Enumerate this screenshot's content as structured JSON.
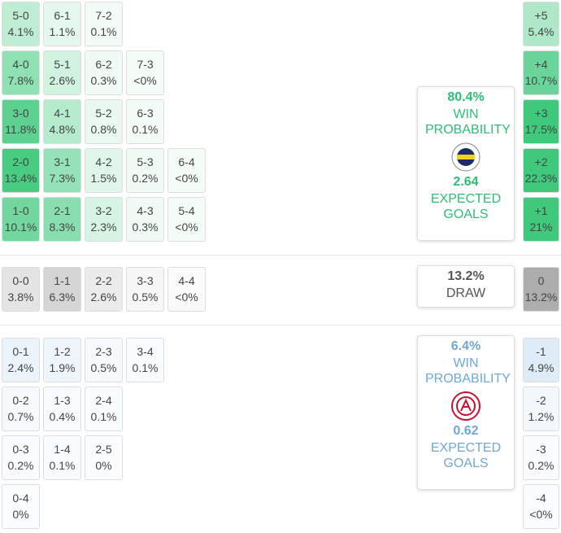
{
  "home": {
    "color": "#2ebd73",
    "base": "#3ec97c",
    "rows": [
      [
        {
          "score": "5-0",
          "prob": "4.1%"
        },
        {
          "score": "6-1",
          "prob": "1.1%"
        },
        {
          "score": "7-2",
          "prob": "0.1%"
        }
      ],
      [
        {
          "score": "4-0",
          "prob": "7.8%"
        },
        {
          "score": "5-1",
          "prob": "2.6%"
        },
        {
          "score": "6-2",
          "prob": "0.3%"
        },
        {
          "score": "7-3",
          "prob": "<0%"
        }
      ],
      [
        {
          "score": "3-0",
          "prob": "11.8%"
        },
        {
          "score": "4-1",
          "prob": "4.8%"
        },
        {
          "score": "5-2",
          "prob": "0.8%"
        },
        {
          "score": "6-3",
          "prob": "0.1%"
        }
      ],
      [
        {
          "score": "2-0",
          "prob": "13.4%"
        },
        {
          "score": "3-1",
          "prob": "7.3%"
        },
        {
          "score": "4-2",
          "prob": "1.5%"
        },
        {
          "score": "5-3",
          "prob": "0.2%"
        },
        {
          "score": "6-4",
          "prob": "<0%"
        }
      ],
      [
        {
          "score": "1-0",
          "prob": "10.1%"
        },
        {
          "score": "2-1",
          "prob": "8.3%"
        },
        {
          "score": "3-2",
          "prob": "2.3%"
        },
        {
          "score": "4-3",
          "prob": "0.3%"
        },
        {
          "score": "5-4",
          "prob": "<0%"
        }
      ]
    ],
    "margins": [
      {
        "label": "+5",
        "prob": "5.4%"
      },
      {
        "label": "+4",
        "prob": "10.7%"
      },
      {
        "label": "+3",
        "prob": "17.5%"
      },
      {
        "label": "+2",
        "prob": "22.3%"
      },
      {
        "label": "+1",
        "prob": "21%"
      }
    ],
    "card": {
      "win_pct": "80.4%",
      "win_label": "WIN PROBABILITY",
      "xg": "2.64",
      "xg_label": "EXPECTED GOALS"
    }
  },
  "draw": {
    "color": "#555555",
    "base": "#a8a8a8",
    "rows": [
      [
        {
          "score": "0-0",
          "prob": "3.8%"
        },
        {
          "score": "1-1",
          "prob": "6.3%"
        },
        {
          "score": "2-2",
          "prob": "2.6%"
        },
        {
          "score": "3-3",
          "prob": "0.5%"
        },
        {
          "score": "4-4",
          "prob": "<0%"
        }
      ]
    ],
    "margins": [
      {
        "label": "0",
        "prob": "13.2%"
      }
    ],
    "card": {
      "pct": "13.2%",
      "label": "DRAW"
    }
  },
  "away": {
    "color": "#6fa8d6",
    "base": "#a9cdeb",
    "rows": [
      [
        {
          "score": "0-1",
          "prob": "2.4%"
        },
        {
          "score": "1-2",
          "prob": "1.9%"
        },
        {
          "score": "2-3",
          "prob": "0.5%"
        },
        {
          "score": "3-4",
          "prob": "0.1%"
        }
      ],
      [
        {
          "score": "0-2",
          "prob": "0.7%"
        },
        {
          "score": "1-3",
          "prob": "0.4%"
        },
        {
          "score": "2-4",
          "prob": "0.1%"
        }
      ],
      [
        {
          "score": "0-3",
          "prob": "0.2%"
        },
        {
          "score": "1-4",
          "prob": "0.1%"
        },
        {
          "score": "2-5",
          "prob": "0%"
        }
      ],
      [
        {
          "score": "0-4",
          "prob": "0%"
        }
      ]
    ],
    "margins": [
      {
        "label": "-1",
        "prob": "4.9%"
      },
      {
        "label": "-2",
        "prob": "1.2%"
      },
      {
        "label": "-3",
        "prob": "0.2%"
      },
      {
        "label": "-4",
        "prob": "<0%"
      }
    ],
    "card": {
      "win_pct": "6.4%",
      "win_label": "WIN PROBABILITY",
      "xg": "0.62",
      "xg_label": "EXPECTED GOALS"
    }
  }
}
